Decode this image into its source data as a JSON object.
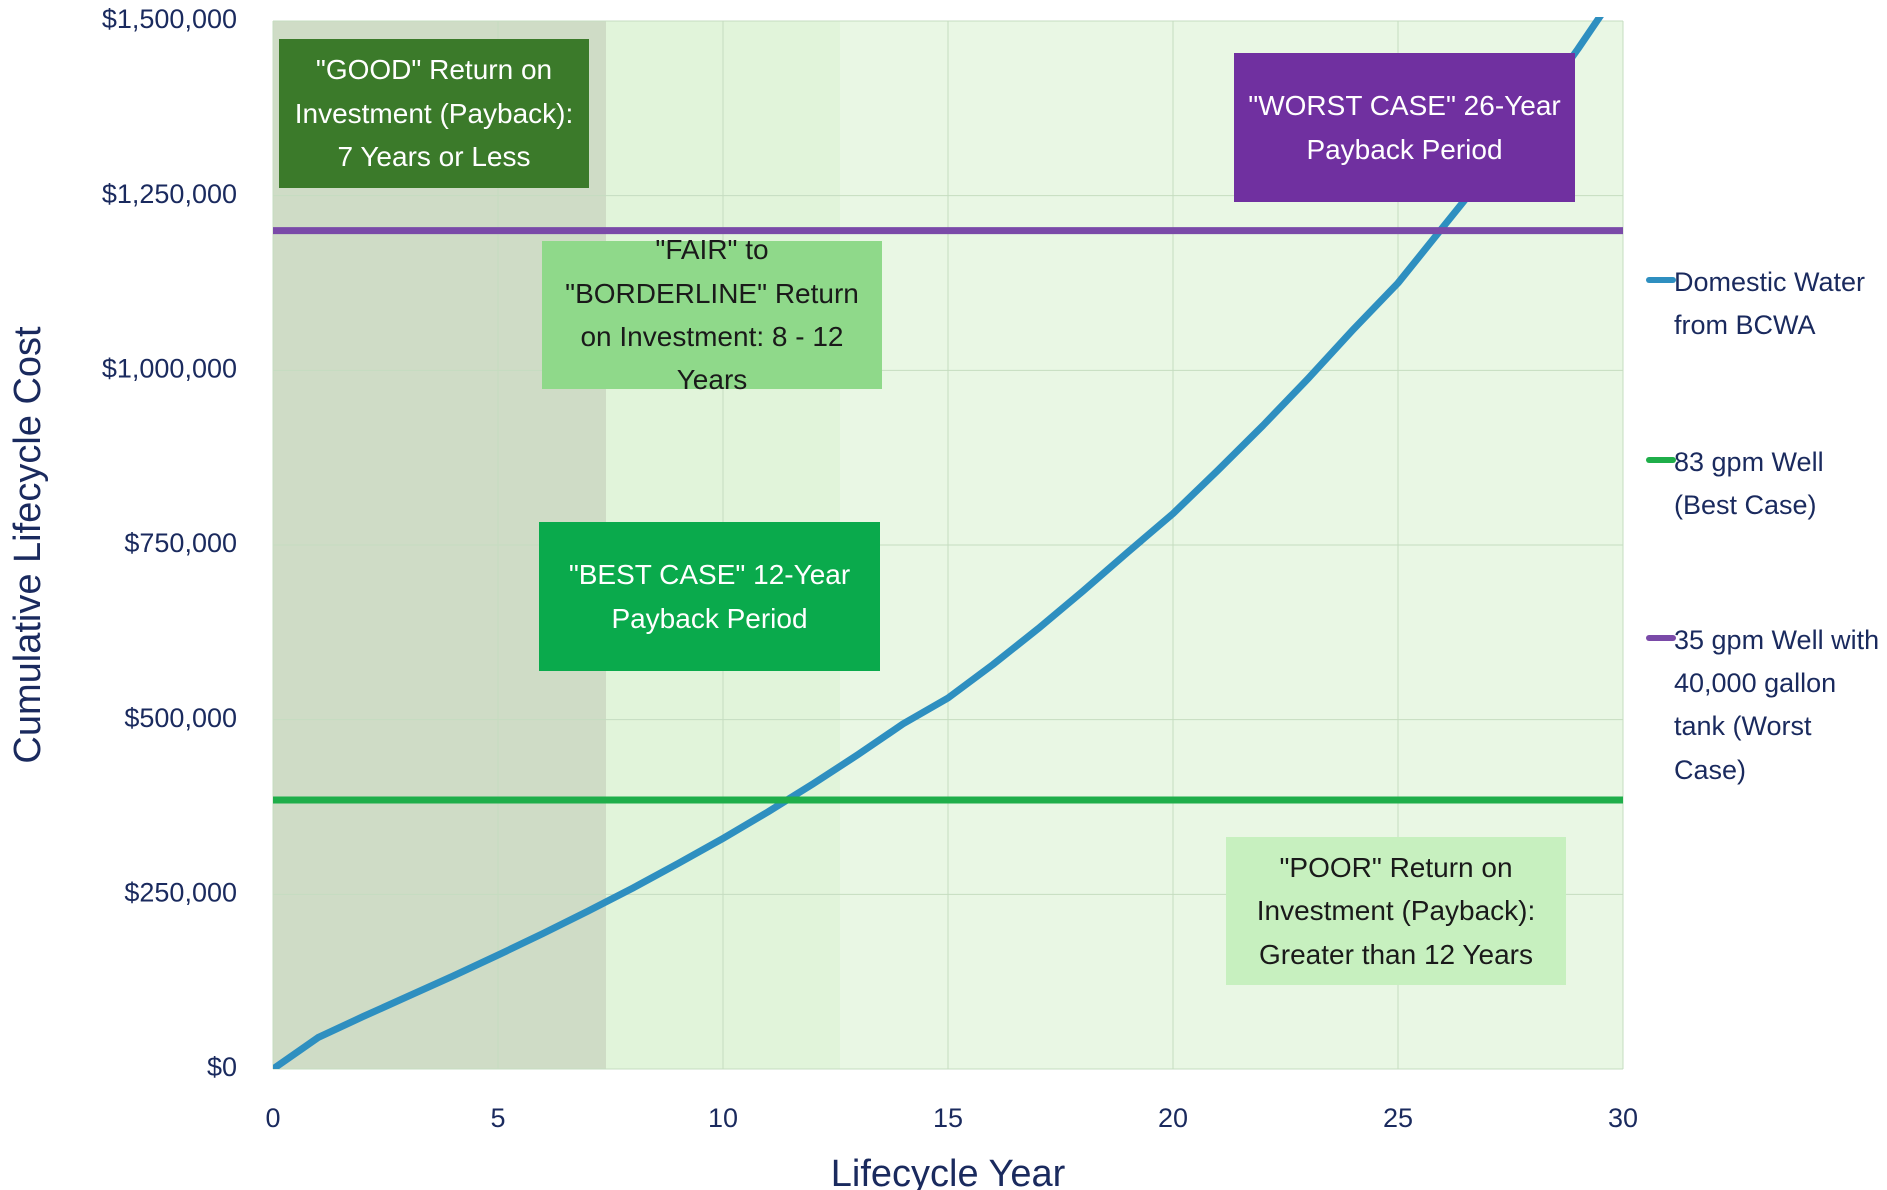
{
  "chart_data": {
    "type": "line",
    "xlabel": "Lifecycle Year",
    "ylabel": "Cumulative Lifecycle Cost",
    "x": [
      0,
      1,
      2,
      3,
      4,
      5,
      6,
      7,
      8,
      9,
      10,
      11,
      12,
      13,
      14,
      15,
      16,
      17,
      18,
      19,
      20,
      21,
      22,
      23,
      24,
      25,
      26,
      27,
      28,
      29,
      30
    ],
    "series": [
      {
        "name": "Domestic Water from BCWA",
        "color": "#2e8fc0",
        "values": [
          0,
          45000,
          75000,
          104000,
          133000,
          163000,
          194000,
          226000,
          259000,
          294000,
          330000,
          368000,
          408000,
          450000,
          494000,
          531000,
          579000,
          630000,
          684000,
          740000,
          795000,
          857000,
          921000,
          988000,
          1058000,
          1125000,
          1205000,
          1285000,
          1370000,
          1460000,
          1555000
        ]
      },
      {
        "name": "83 gpm Well (Best Case)",
        "color": "#1fae4a",
        "values": [
          385000,
          385000,
          385000,
          385000,
          385000,
          385000,
          385000,
          385000,
          385000,
          385000,
          385000,
          385000,
          385000,
          385000,
          385000,
          385000,
          385000,
          385000,
          385000,
          385000,
          385000,
          385000,
          385000,
          385000,
          385000,
          385000,
          385000,
          385000,
          385000,
          385000,
          385000
        ]
      },
      {
        "name": "35 gpm Well with 40,000 gallon tank (Worst Case)",
        "color": "#7a4aa8",
        "values": [
          1200000,
          1200000,
          1200000,
          1200000,
          1200000,
          1200000,
          1200000,
          1200000,
          1200000,
          1200000,
          1200000,
          1200000,
          1200000,
          1200000,
          1200000,
          1200000,
          1200000,
          1200000,
          1200000,
          1200000,
          1200000,
          1200000,
          1200000,
          1200000,
          1200000,
          1200000,
          1200000,
          1200000,
          1200000,
          1200000,
          1200000
        ]
      }
    ],
    "xlim": [
      0,
      30
    ],
    "xticks": [
      0,
      5,
      10,
      15,
      20,
      25,
      30
    ],
    "ylim": [
      0,
      1500000
    ],
    "yticks": [
      {
        "value": 0,
        "label": "$0"
      },
      {
        "value": 250000,
        "label": "$250,000"
      },
      {
        "value": 500000,
        "label": "$500,000"
      },
      {
        "value": 750000,
        "label": "$750,000"
      },
      {
        "value": 1000000,
        "label": "$1,000,000"
      },
      {
        "value": 1250000,
        "label": "$1,250,000"
      },
      {
        "value": 1500000,
        "label": "$1,500,000"
      }
    ],
    "grid": true,
    "legend": "right",
    "regions": [
      {
        "from": 0,
        "to": 7.4,
        "color": "#cfdcc6"
      },
      {
        "from": 7.4,
        "to": 12.6,
        "color": "#e1f4da"
      },
      {
        "from": 12.6,
        "to": 30,
        "color": "#e9f7e4"
      }
    ],
    "annotations": [
      {
        "text": "\"GOOD\" Return on Investment (Payback): 7 Years or Less",
        "color": "#3b7a2a",
        "text_color": "#ffffff"
      },
      {
        "text": "\"FAIR\" to \"BORDERLINE\" Return on Investment: 8 - 12 Years",
        "color": "#8fd98a",
        "text_color": "#1a1a1a"
      },
      {
        "text": "\"BEST CASE\" 12-Year Payback Period",
        "color": "#0aaa4c",
        "text_color": "#ffffff"
      },
      {
        "text": "\"WORST CASE\" 26-Year Payback Period",
        "color": "#7030a0",
        "text_color": "#ffffff"
      },
      {
        "text": "\"POOR\"  Return on Investment (Payback): Greater than 12 Years",
        "color": "#c7f0bf",
        "text_color": "#1a1a1a"
      }
    ]
  }
}
